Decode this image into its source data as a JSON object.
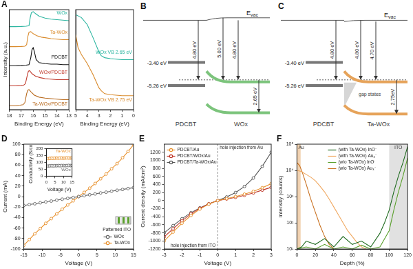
{
  "chart_data": [
    {
      "type": "line",
      "title": "A",
      "x_label": "Binding Energy (eV)",
      "y_label": "Intensity (a.u.)",
      "xlim": [
        18,
        13
      ],
      "xticks": [
        18,
        17,
        16,
        15,
        14,
        13
      ],
      "ylim": [
        0,
        10
      ],
      "tick_labels": "x",
      "grid": false,
      "series": [
        {
          "name": "WOx",
          "color": "#2bb5a0",
          "marker": "none",
          "line_style": "solid",
          "x": [
            18,
            17.5,
            17,
            16.6,
            16.35,
            16.25,
            16.15,
            16.0,
            15.8,
            15.5,
            15,
            14.5,
            14,
            13.5,
            13
          ],
          "values": [
            8.3,
            8.3,
            8.32,
            8.35,
            8.4,
            9.2,
            9.7,
            9.8,
            9.6,
            9.35,
            9.15,
            9.05,
            9.0,
            8.95,
            8.9
          ]
        },
        {
          "name": "Ta-WOx",
          "color": "#d98a2b",
          "marker": "none",
          "line_style": "solid",
          "x": [
            18,
            17.5,
            17,
            16.7,
            16.55,
            16.45,
            16.35,
            16.2,
            16,
            15.7,
            15.3,
            15,
            14.5,
            14,
            13.5,
            13
          ],
          "values": [
            6.3,
            6.3,
            6.32,
            6.35,
            6.5,
            7.3,
            7.75,
            7.8,
            7.6,
            7.4,
            7.25,
            7.2,
            7.1,
            7.05,
            7.0,
            7.0
          ]
        },
        {
          "name": "PDCBT",
          "color": "#111111",
          "marker": "none",
          "line_style": "solid",
          "x": [
            18,
            17.5,
            17,
            16.6,
            16.35,
            16.2,
            16.1,
            16.0,
            15.9,
            15.75,
            15.5,
            15,
            14.5,
            14,
            13.5,
            13
          ],
          "values": [
            4.4,
            4.4,
            4.42,
            4.45,
            4.5,
            5.2,
            6.0,
            6.2,
            5.8,
            5.0,
            4.7,
            4.6,
            4.55,
            4.55,
            4.5,
            4.5
          ]
        },
        {
          "name": "WOx/PDCBT",
          "color": "#c0392b",
          "marker": "none",
          "line_style": "solid",
          "x": [
            18,
            17.5,
            17,
            16.8,
            16.65,
            16.5,
            16.4,
            16.3,
            16.1,
            15.8,
            15.4,
            15,
            14.5,
            14,
            13.5,
            13
          ],
          "values": [
            2.4,
            2.4,
            2.42,
            2.45,
            2.6,
            3.4,
            3.85,
            3.9,
            3.6,
            3.35,
            3.2,
            3.1,
            3.05,
            3.0,
            3.0,
            3.0
          ]
        },
        {
          "name": "Ta-WOx/PDCBT",
          "color": "#b86a1e",
          "marker": "none",
          "line_style": "solid",
          "x": [
            18,
            17.5,
            17.1,
            16.85,
            16.7,
            16.55,
            16.45,
            16.35,
            16.2,
            15.9,
            15.5,
            15,
            14.5,
            14,
            13.5,
            13
          ],
          "values": [
            0.4,
            0.4,
            0.45,
            0.5,
            0.7,
            1.6,
            1.95,
            2.0,
            1.8,
            1.45,
            1.25,
            1.15,
            1.1,
            1.05,
            1.0,
            1.0
          ]
        }
      ]
    },
    {
      "type": "line",
      "x_label": "Binding Energy (eV)",
      "xlim": [
        5,
        0
      ],
      "xticks": [
        5,
        4,
        3,
        2,
        1,
        0
      ],
      "ylim": [
        0,
        10
      ],
      "tick_labels": "x",
      "grid": false,
      "series": [
        {
          "name": "WOx",
          "annotation": "WOx VB 2.65 eV",
          "color": "#2bb5a0",
          "marker": "none",
          "line_style": "solid",
          "x": [
            5,
            4.5,
            4,
            3.5,
            3,
            2.8,
            2.5,
            2,
            1,
            0
          ],
          "values": [
            9.5,
            9.2,
            8.5,
            7.2,
            5.8,
            5.4,
            5.2,
            5.1,
            5.0,
            5.0
          ]
        },
        {
          "name": "Ta-WOx",
          "annotation": "Ta-WOx VB 2.75 eV",
          "color": "#d98a2b",
          "marker": "none",
          "line_style": "solid",
          "x": [
            5,
            4.8,
            4.5,
            4,
            3.5,
            3,
            2.8,
            2.5,
            2,
            1,
            0
          ],
          "values": [
            7.5,
            6.2,
            5.5,
            4.6,
            3.5,
            2.2,
            1.9,
            1.6,
            1.5,
            1.4,
            1.4
          ]
        }
      ]
    },
    {
      "type": "line",
      "title": "D",
      "x_label": "Voltage (V)",
      "y_label": "Current (mA)",
      "xlim": [
        -15,
        15
      ],
      "xticks": [
        -15,
        -10,
        -5,
        0,
        5,
        10,
        15
      ],
      "ylim": [
        -100,
        100
      ],
      "yticks": [
        -100,
        -80,
        -60,
        -40,
        -20,
        0,
        20,
        40,
        60,
        80,
        100
      ],
      "grid": false,
      "legend": "lower right",
      "annotations": [
        "Patterned ITO"
      ],
      "x": [
        -15,
        -13.5,
        -12,
        -10.5,
        -9,
        -7.5,
        -6,
        -4.5,
        -3,
        -1.5,
        0,
        1.5,
        3,
        4.5,
        6,
        7.5,
        9,
        10.5,
        12,
        13.5,
        15
      ],
      "series": [
        {
          "name": "WOx",
          "color": "#666666",
          "marker": "circle",
          "line_style": "solid",
          "values": [
            -17,
            -15.2,
            -13.7,
            -11.8,
            -10.2,
            -8.6,
            -6.8,
            -5.0,
            -3.4,
            -1.8,
            0,
            1.7,
            3.5,
            5.1,
            6.9,
            8.4,
            10.2,
            12.0,
            13.6,
            15.3,
            17
          ]
        },
        {
          "name": "Ta-WOx",
          "color": "#e8912d",
          "marker": "circle",
          "line_style": "solid",
          "values": [
            -93,
            -82,
            -71,
            -61,
            -51,
            -42,
            -33,
            -24,
            -16,
            -8,
            0,
            8,
            16,
            25,
            34,
            43,
            53,
            63,
            74,
            86,
            99
          ]
        }
      ]
    },
    {
      "type": "line",
      "x_label": "Voltage (V)",
      "y_label": "Conductivity (S/cm)",
      "xlim": [
        0,
        15
      ],
      "xticks": [
        0,
        5,
        10,
        15
      ],
      "ylim": [
        0,
        200
      ],
      "yticks": [
        0,
        50,
        100,
        150,
        200
      ],
      "grid": false,
      "x": [
        1,
        2,
        3,
        4,
        5,
        6,
        7,
        8,
        9,
        10,
        11,
        12,
        13,
        14,
        15
      ],
      "series": [
        {
          "name": "Ta-WOx",
          "color": "#e8912d",
          "marker": "circle",
          "line_style": "solid",
          "values": [
            128,
            130,
            131,
            130,
            131,
            132,
            131,
            132,
            132,
            131,
            132,
            133,
            132,
            132,
            133
          ]
        },
        {
          "name": "WOx",
          "color": "#666666",
          "marker": "circle",
          "line_style": "solid",
          "values": [
            74,
            75,
            76,
            75,
            76,
            76,
            77,
            76,
            77,
            77,
            76,
            77,
            78,
            77,
            78
          ]
        }
      ]
    },
    {
      "type": "line",
      "title": "E",
      "x_label": "Voltage (V)",
      "y_label": "Current density (mA/cm²)",
      "xlim": [
        -3,
        3
      ],
      "xticks": [
        -3,
        -2,
        -1,
        0,
        1,
        2,
        3
      ],
      "ylim": [
        -1200,
        1400
      ],
      "yticks": [
        -1200,
        -1000,
        -800,
        -600,
        -400,
        -200,
        0,
        200,
        400,
        600,
        800,
        1000,
        1200
      ],
      "grid": false,
      "legend": "upper left",
      "annotations": [
        "hole injection from Au",
        "hole injection from ITO"
      ],
      "x": [
        -3,
        -2.5,
        -2,
        -1.5,
        -1,
        -0.5,
        0,
        0.5,
        1,
        1.5,
        2,
        2.5,
        3
      ],
      "series": [
        {
          "name": "PDCBT/Au",
          "color": "#e8912d",
          "marker": "circle",
          "line_style": "solid",
          "values": [
            -1000,
            -780,
            -560,
            -370,
            -210,
            -90,
            0,
            50,
            100,
            160,
            230,
            320,
            420
          ]
        },
        {
          "name": "PDCBT/WOx/Au",
          "color": "#c0392b",
          "marker": "circle",
          "line_style": "solid",
          "values": [
            -900,
            -700,
            -500,
            -330,
            -190,
            -80,
            0,
            40,
            80,
            130,
            190,
            260,
            330
          ]
        },
        {
          "name": "PDCBT/Ta-WOx/Au",
          "color": "#555555",
          "marker": "circle",
          "line_style": "solid",
          "values": [
            -800,
            -620,
            -450,
            -300,
            -180,
            -80,
            0,
            90,
            200,
            350,
            560,
            850,
            1200
          ]
        }
      ]
    },
    {
      "type": "line",
      "title": "F",
      "x_label": "Depth (%)",
      "y_label": "Intensity (counts)",
      "xlim": [
        0,
        120
      ],
      "xticks": [
        0,
        20,
        40,
        60,
        80,
        100,
        120
      ],
      "ylim": [
        10,
        100000
      ],
      "log": "y",
      "yticks": [
        {
          "value": 10,
          "label": "10¹"
        },
        {
          "value": 100,
          "label": "10²"
        },
        {
          "value": 1000,
          "label": "10³"
        },
        {
          "value": 10000,
          "label": "10⁴"
        },
        {
          "value": 100000,
          "label": "10⁵"
        }
      ],
      "grid": false,
      "legend": "top",
      "regions": [
        {
          "label": "Au",
          "from": 0,
          "to": 4
        },
        {
          "label": "ITO",
          "from": 100,
          "to": 120
        }
      ],
      "series": [
        {
          "name": "(with Ta-WOx) InO⁻",
          "color": "#1f6b1f",
          "marker": "none",
          "line_style": "solid",
          "x": [
            0,
            5,
            10,
            20,
            30,
            40,
            50,
            60,
            70,
            80,
            90,
            95,
            100,
            105,
            110,
            115,
            120
          ],
          "values": [
            10,
            12,
            20,
            15,
            25,
            12,
            30,
            15,
            20,
            12,
            40,
            100,
            300,
            1500,
            6000,
            20000,
            80000
          ]
        },
        {
          "name": "(with Ta-WOx) Au₃⁻",
          "color": "#f0a860",
          "marker": "none",
          "line_style": "solid",
          "x": [
            0,
            5,
            10,
            15,
            20,
            25,
            30,
            35,
            40,
            45,
            50,
            55,
            60,
            65,
            70,
            75
          ],
          "values": [
            10000,
            9000,
            7000,
            5500,
            4000,
            2500,
            1500,
            800,
            400,
            200,
            100,
            50,
            30,
            18,
            12,
            10
          ]
        },
        {
          "name": "(w/o Ta-WOx) InO⁻",
          "color": "#5aa02c",
          "marker": "none",
          "line_style": "solid",
          "x": [
            0,
            10,
            20,
            30,
            40,
            50,
            60,
            70,
            80,
            90,
            100,
            105,
            110,
            115,
            120
          ],
          "values": [
            10,
            12,
            10,
            15,
            10,
            12,
            10,
            14,
            10,
            12,
            50,
            300,
            1500,
            6000,
            30000
          ]
        },
        {
          "name": "(w/o Ta-WOx) Au₃⁻",
          "color": "#c87020",
          "marker": "none",
          "line_style": "solid",
          "x": [
            0,
            3,
            6,
            10,
            15,
            20,
            25,
            30,
            35,
            40
          ],
          "values": [
            20000,
            15000,
            8000,
            3000,
            800,
            250,
            80,
            30,
            15,
            10
          ]
        }
      ]
    }
  ],
  "diagrams": [
    {
      "title": "B",
      "vacuum_label": "Evac",
      "left": {
        "name": "PDCBT",
        "levels": [
          {
            "value": -3.4,
            "label": "-3.40 eV"
          },
          {
            "value": -5.26,
            "label": "-5.26 eV"
          }
        ],
        "arrow": {
          "value": 4.8,
          "label": "4.80 eV"
        }
      },
      "right": {
        "name": "WOx",
        "color": "#7cc47c",
        "arrows": [
          {
            "value": 5.0,
            "label": "5.00 eV"
          },
          {
            "value": 4.8,
            "label": "4.80 eV"
          },
          {
            "value": 2.65,
            "label": "2.65 eV"
          }
        ]
      }
    },
    {
      "title": "C",
      "vacuum_label": "Evac",
      "left": {
        "name": "PDCBT",
        "levels": [
          {
            "value": -3.4,
            "label": "-3.40 eV"
          },
          {
            "value": -5.26,
            "label": "-5.26 eV"
          }
        ],
        "arrow": {
          "value": 4.8,
          "label": "4.80 eV"
        }
      },
      "right": {
        "name": "Ta-WOx",
        "color": "#e6a35a",
        "gap_states": "gap states",
        "arrows": [
          {
            "value": 4.8,
            "label": "4.80 eV"
          },
          {
            "value": 4.7,
            "label": "4.70 eV"
          },
          {
            "value": 2.75,
            "label": "2.75eV"
          }
        ]
      }
    }
  ]
}
